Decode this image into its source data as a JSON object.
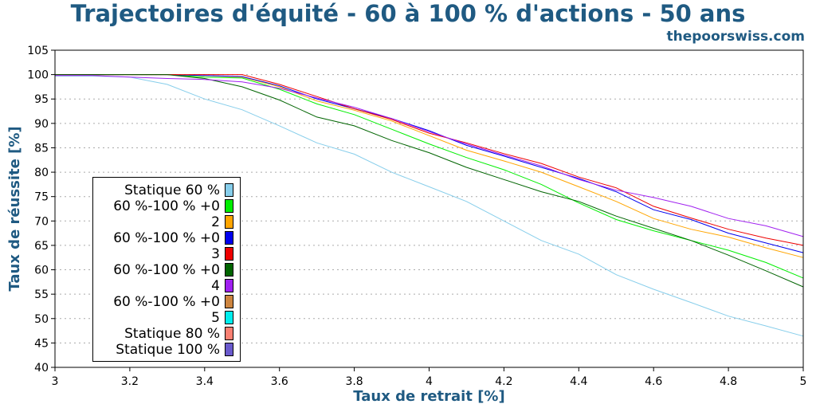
{
  "header": {
    "title": "Trajectoires d'équité - 60 à 100 % d'actions - 50 ans",
    "site": "thepoorswiss.com"
  },
  "chart_data": {
    "type": "line",
    "xlabel": "Taux de retrait [%]",
    "ylabel": "Taux de réussite [%]",
    "xlim": [
      3,
      5
    ],
    "ylim": [
      40,
      105
    ],
    "xticks": [
      "3",
      "3.2",
      "3.4",
      "3.6",
      "3.8",
      "4",
      "4.2",
      "4.4",
      "4.6",
      "4.8",
      "5"
    ],
    "yticks": [
      "40",
      "45",
      "50",
      "55",
      "60",
      "65",
      "70",
      "75",
      "80",
      "85",
      "90",
      "95",
      "100",
      "105"
    ],
    "grid": "horizontal dotted",
    "legend_position": "lower-left",
    "legend": [
      {
        "label": "Statique 60 %",
        "color": "#87ceeb"
      },
      {
        "label": "60 %-100 % +0\n2",
        "color": "#00ee00"
      },
      {
        "label": "",
        "color": "#ffa500"
      },
      {
        "label": "60 %-100 % +0\n3",
        "color": "#0000ee"
      },
      {
        "label": "",
        "color": "#ee0000"
      },
      {
        "label": "60 %-100 % +0\n4",
        "color": "#006400"
      },
      {
        "label": "",
        "color": "#a020f0"
      },
      {
        "label": "60 %-100 % +0\n5",
        "color": "#cd853f"
      },
      {
        "label": "",
        "color": "#00eeee"
      },
      {
        "label": "Statique 80 %",
        "color": "#fa8072"
      },
      {
        "label": "Statique 100 %",
        "color": "#6a5acd"
      }
    ],
    "x": [
      3.0,
      3.1,
      3.2,
      3.3,
      3.4,
      3.5,
      3.6,
      3.7,
      3.8,
      3.9,
      4.0,
      4.1,
      4.2,
      4.3,
      4.4,
      4.5,
      4.6,
      4.7,
      4.8,
      4.9,
      5.0
    ],
    "series": [
      {
        "color": "#87ceeb",
        "values": [
          99.7,
          99.7,
          99.5,
          98.0,
          95.0,
          92.8,
          89.5,
          86.0,
          83.7,
          80.0,
          77.0,
          74.0,
          70.0,
          66.0,
          63.2,
          59.0,
          56.0,
          53.3,
          50.5,
          48.5,
          46.4
        ]
      },
      {
        "color": "#00ee00",
        "values": [
          100,
          100,
          100,
          100,
          99.5,
          99.3,
          97.0,
          94.0,
          91.8,
          88.8,
          85.8,
          83.0,
          80.5,
          77.5,
          73.7,
          70.3,
          68.0,
          66.0,
          64.0,
          61.5,
          58.3
        ]
      },
      {
        "color": "#ffa500",
        "values": [
          100,
          100,
          100,
          100,
          99.8,
          99.5,
          97.5,
          94.6,
          92.7,
          90.5,
          87.5,
          84.5,
          82.3,
          80.0,
          77.0,
          74.0,
          70.5,
          68.3,
          66.7,
          64.5,
          62.5
        ]
      },
      {
        "color": "#0000ee",
        "values": [
          100,
          100,
          100,
          100,
          99.8,
          99.6,
          97.7,
          95.0,
          93.0,
          91.0,
          88.5,
          85.5,
          83.3,
          81.0,
          78.7,
          76.0,
          72.3,
          70.3,
          67.5,
          65.5,
          63.5
        ]
      },
      {
        "color": "#ee0000",
        "values": [
          100,
          100,
          100,
          100,
          100,
          100,
          98.0,
          95.5,
          93.0,
          90.8,
          88.0,
          86.0,
          83.8,
          81.8,
          79.0,
          76.8,
          73.0,
          70.6,
          68.3,
          66.5,
          65.0
        ]
      },
      {
        "color": "#006400",
        "values": [
          100,
          100,
          100,
          100,
          99.2,
          97.5,
          94.8,
          91.3,
          89.5,
          86.5,
          84.0,
          81.0,
          78.5,
          76.0,
          74.0,
          71.0,
          68.5,
          66.0,
          63.0,
          59.8,
          56.5
        ]
      },
      {
        "color": "#a020f0",
        "values": [
          99.8,
          99.8,
          99.5,
          99.2,
          99.0,
          98.5,
          97.2,
          95.2,
          93.3,
          91.0,
          88.3,
          85.8,
          83.5,
          81.3,
          78.5,
          76.3,
          74.8,
          73.0,
          70.5,
          69.0,
          66.8
        ]
      }
    ]
  }
}
